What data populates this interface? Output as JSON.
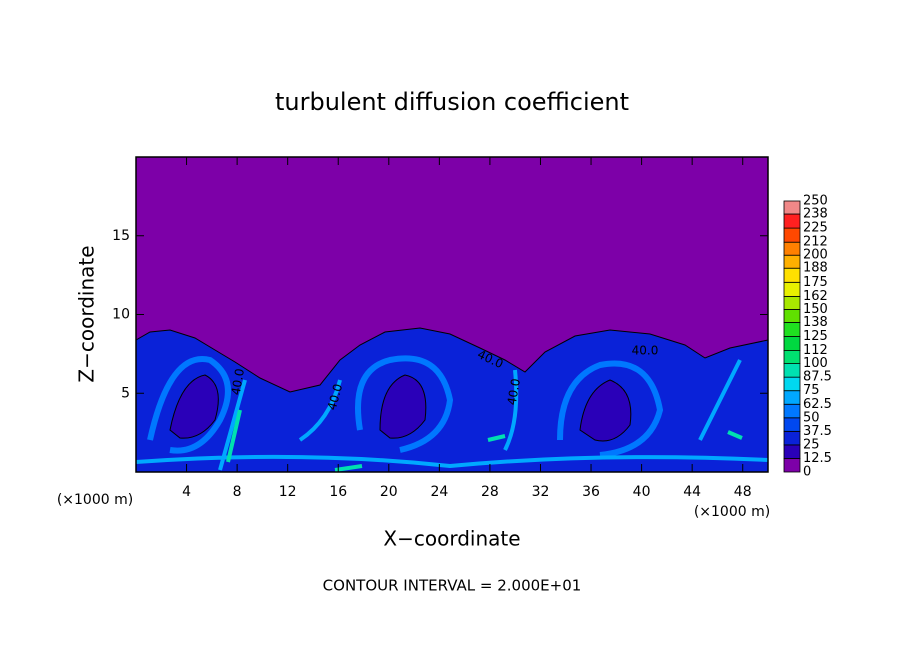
{
  "chart_data": {
    "type": "contour",
    "title": "turbulent diffusion coefficient",
    "xlabel": "X−coordinate",
    "ylabel": "Z−coordinate",
    "x_unit_label": "(×1000 m)",
    "y_unit_label": "(×1000 m)",
    "xlim": [
      0,
      50
    ],
    "xticks": [
      4,
      8,
      12,
      16,
      20,
      24,
      28,
      32,
      36,
      40,
      44,
      48
    ],
    "ylim": [
      0,
      20
    ],
    "yticks": [
      5,
      10,
      15
    ],
    "colorbar": {
      "ticks": [
        0,
        12.5,
        25,
        37.5,
        50,
        62.5,
        75,
        87.5,
        100,
        112,
        125,
        138,
        150,
        162,
        175,
        188,
        200,
        212,
        225,
        238,
        250
      ],
      "colors": [
        "#7d00a8",
        "#2a00b8",
        "#0a22d8",
        "#0048f0",
        "#0078ff",
        "#00a8ff",
        "#00d8f0",
        "#00e0b0",
        "#00e070",
        "#00d840",
        "#20e020",
        "#60e000",
        "#a8e800",
        "#e8f000",
        "#ffe000",
        "#ffb000",
        "#ff8000",
        "#ff4800",
        "#ff2020",
        "#f08888"
      ]
    },
    "contour_labels": [
      "40.0",
      "40.0",
      "40.0",
      "40.0",
      "40.0"
    ],
    "footnote": "CONTOUR INTERVAL = 2.000E+01"
  }
}
